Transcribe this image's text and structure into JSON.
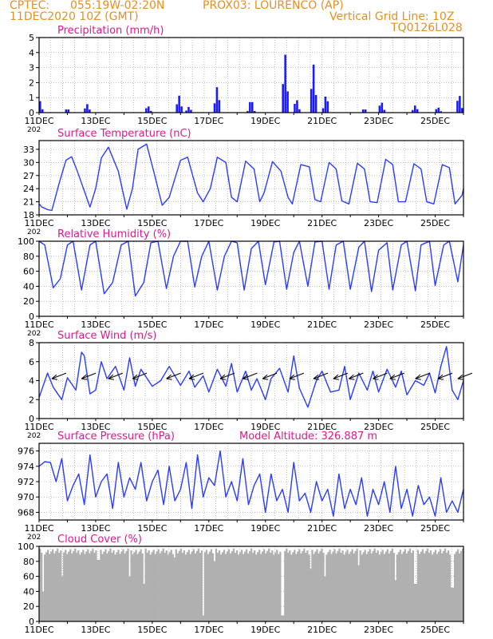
{
  "header": {
    "source": "CPTEC:",
    "coords": "055:19W-02:20N",
    "station": "PROX03: LOURENCO (AP)",
    "run": "11DEC2020 10Z (GMT)",
    "vgrid": "Vertical Grid Line: 10Z",
    "code": "TQ0126L028"
  },
  "colors": {
    "header": "#e69020",
    "title": "#e0198c",
    "series": "#2a3cff",
    "bars": "#1a1aff",
    "cloud": "#b0b0b0",
    "arrows": "#000000"
  },
  "x_labels": [
    "11DEC",
    "13DEC",
    "15DEC",
    "17DEC",
    "19DEC",
    "21DEC",
    "23DEC",
    "25DEC"
  ],
  "x_tail": "202",
  "chart_data": [
    {
      "id": "precip",
      "type": "bar",
      "title": "Precipitation (mm/h)",
      "ylim": [
        0,
        5
      ],
      "yticks": [
        0,
        1,
        2,
        3,
        4,
        5
      ],
      "x_range_days": [
        0,
        15
      ],
      "peaks": [
        [
          0.02,
          0.9
        ],
        [
          1.0,
          0.3
        ],
        [
          1.7,
          0.6
        ],
        [
          3.85,
          0.5
        ],
        [
          4.95,
          1.2
        ],
        [
          5.3,
          0.4
        ],
        [
          6.3,
          1.8
        ],
        [
          7.5,
          1.0
        ],
        [
          8.7,
          4.1
        ],
        [
          9.1,
          1.0
        ],
        [
          9.7,
          3.4
        ],
        [
          10.15,
          1.3
        ],
        [
          11.5,
          0.3
        ],
        [
          12.1,
          0.8
        ],
        [
          13.3,
          0.5
        ],
        [
          14.1,
          0.4
        ],
        [
          14.85,
          1.35
        ]
      ]
    },
    {
      "id": "temp",
      "type": "line",
      "title": "Surface Temperature (nC)",
      "ylim": [
        18,
        35
      ],
      "yticks": [
        18,
        21,
        24,
        27,
        30,
        33
      ],
      "x_range_days": [
        0,
        15
      ],
      "x": [
        0,
        0.1,
        0.3,
        0.45,
        0.7,
        0.95,
        1.15,
        1.35,
        1.8,
        2.0,
        2.2,
        2.45,
        2.8,
        3.1,
        3.3,
        3.5,
        3.8,
        4.05,
        4.35,
        4.6,
        5.0,
        5.25,
        5.6,
        5.8,
        6.05,
        6.3,
        6.6,
        6.8,
        7.0,
        7.3,
        7.6,
        7.8,
        7.95,
        8.25,
        8.55,
        8.8,
        8.95,
        9.25,
        9.55,
        9.75,
        9.95,
        10.25,
        10.5,
        10.7,
        10.95,
        11.25,
        11.5,
        11.7,
        11.95,
        12.25,
        12.5,
        12.7,
        12.95,
        13.25,
        13.5,
        13.7,
        13.95,
        14.25,
        14.5,
        14.7,
        14.95,
        15.0
      ],
      "y": [
        20.5,
        19.8,
        19.2,
        19.0,
        25,
        30.5,
        31.3,
        28,
        19.8,
        24,
        31,
        33.5,
        28,
        19.3,
        24,
        33,
        34.2,
        28,
        20.2,
        22,
        30.5,
        31.2,
        23,
        21,
        24,
        31.2,
        30,
        22,
        21,
        30.3,
        28.5,
        21,
        23,
        30.2,
        28,
        22,
        20.5,
        29.5,
        29,
        21.5,
        21,
        30.0,
        28.5,
        21.2,
        20.5,
        29.8,
        28.5,
        21.0,
        20.8,
        30.7,
        29.5,
        21.0,
        21,
        29.7,
        28.5,
        21.0,
        20.5,
        29.5,
        28.8,
        20.5,
        22.5,
        24.0
      ]
    },
    {
      "id": "humidity",
      "type": "line",
      "title": "Relative Humidity (%)",
      "ylim": [
        0,
        100
      ],
      "yticks": [
        0,
        20,
        40,
        60,
        80,
        100
      ],
      "x_range_days": [
        0,
        15
      ],
      "x": [
        0,
        0.2,
        0.5,
        0.75,
        1.0,
        1.2,
        1.5,
        1.8,
        2.0,
        2.3,
        2.6,
        2.9,
        3.15,
        3.4,
        3.7,
        3.95,
        4.2,
        4.5,
        4.75,
        5.0,
        5.25,
        5.5,
        5.75,
        6.0,
        6.3,
        6.55,
        6.8,
        7.0,
        7.25,
        7.5,
        7.75,
        8.0,
        8.3,
        8.5,
        8.75,
        9.0,
        9.2,
        9.5,
        9.75,
        10.0,
        10.25,
        10.5,
        10.75,
        11.0,
        11.3,
        11.5,
        11.75,
        12.0,
        12.3,
        12.5,
        12.8,
        13.0,
        13.3,
        13.5,
        13.8,
        14.0,
        14.3,
        14.5,
        14.8,
        15.0
      ],
      "y": [
        100,
        95,
        38,
        50,
        95,
        100,
        35,
        95,
        100,
        30,
        45,
        95,
        100,
        27,
        45,
        98,
        100,
        37,
        80,
        100,
        100,
        39,
        80,
        100,
        35,
        80,
        100,
        98,
        35,
        90,
        100,
        42,
        99,
        100,
        36,
        85,
        100,
        40,
        99,
        100,
        36,
        95,
        100,
        36,
        92,
        100,
        33,
        88,
        98,
        35,
        95,
        100,
        34,
        95,
        100,
        41,
        95,
        100,
        46,
        95
      ]
    },
    {
      "id": "wind",
      "type": "line",
      "title": "Surface Wind (m/s)",
      "ylim": [
        0,
        8
      ],
      "yticks": [
        0,
        2,
        4,
        6,
        8
      ],
      "x_range_days": [
        0,
        15
      ],
      "x": [
        0,
        0.3,
        0.5,
        0.8,
        1.0,
        1.3,
        1.5,
        1.6,
        1.8,
        2.0,
        2.2,
        2.4,
        2.7,
        3.0,
        3.2,
        3.4,
        3.6,
        4.0,
        4.3,
        4.6,
        5.0,
        5.3,
        5.5,
        5.8,
        6.0,
        6.3,
        6.6,
        6.8,
        7.0,
        7.3,
        7.5,
        7.7,
        8.0,
        8.2,
        8.5,
        8.8,
        9.0,
        9.2,
        9.5,
        9.8,
        10.0,
        10.3,
        10.6,
        10.8,
        11.0,
        11.3,
        11.6,
        11.8,
        12.0,
        12.3,
        12.6,
        12.8,
        13.0,
        13.3,
        13.6,
        13.8,
        14.0,
        14.2,
        14.4,
        14.6,
        14.8,
        15.0
      ],
      "y": [
        2.2,
        4.8,
        3.3,
        2.0,
        4.3,
        3.0,
        7.0,
        6.6,
        2.6,
        3.0,
        6.0,
        4.2,
        5.5,
        3.0,
        6.4,
        3.4,
        5.2,
        3.4,
        4.0,
        5.5,
        3.5,
        5.0,
        3.3,
        4.5,
        2.8,
        5.2,
        3.4,
        5.8,
        2.8,
        5.0,
        3.0,
        4.2,
        2.0,
        4.2,
        5.3,
        2.8,
        6.6,
        3.2,
        1.2,
        4.0,
        5.0,
        2.8,
        3.0,
        5.5,
        2.0,
        4.8,
        3.0,
        5.0,
        2.8,
        5.2,
        3.3,
        5.0,
        2.5,
        4.0,
        3.5,
        4.8,
        2.7,
        5.5,
        7.6,
        3.0,
        2.0,
        4.0
      ],
      "barbs_day": [
        0.45,
        1.5,
        2.45,
        3.3,
        4.5,
        5.3,
        6.4,
        7.2,
        7.9,
        8.85,
        9.7,
        10.4,
        10.95,
        11.8,
        12.4,
        13.3,
        14.1,
        14.8
      ]
    },
    {
      "id": "pressure",
      "type": "line",
      "title": "Surface Pressure (hPa)",
      "subtitle": "Model Altitude: 326.887  m",
      "ylim": [
        967,
        977
      ],
      "yticks": [
        968,
        970,
        972,
        974,
        976
      ],
      "x_range_days": [
        0,
        15
      ],
      "x": [
        0,
        0.2,
        0.4,
        0.6,
        0.8,
        1.0,
        1.2,
        1.4,
        1.6,
        1.8,
        2.0,
        2.2,
        2.4,
        2.6,
        2.8,
        3.0,
        3.2,
        3.4,
        3.6,
        3.8,
        4.0,
        4.2,
        4.4,
        4.6,
        4.8,
        5.0,
        5.2,
        5.4,
        5.6,
        5.8,
        6.0,
        6.2,
        6.4,
        6.6,
        6.8,
        7.0,
        7.2,
        7.4,
        7.6,
        7.8,
        8.0,
        8.2,
        8.4,
        8.6,
        8.8,
        9.0,
        9.2,
        9.4,
        9.6,
        9.8,
        10.0,
        10.2,
        10.4,
        10.6,
        10.8,
        11.0,
        11.2,
        11.4,
        11.6,
        11.8,
        12.0,
        12.2,
        12.4,
        12.6,
        12.8,
        13.0,
        13.2,
        13.4,
        13.6,
        13.8,
        14.0,
        14.2,
        14.4,
        14.6,
        14.8,
        15.0
      ],
      "y": [
        974,
        974.6,
        974.5,
        972,
        975,
        969.5,
        971.5,
        973,
        969,
        975.5,
        970,
        972,
        973,
        968.5,
        974.5,
        970,
        972.5,
        971,
        974.5,
        969.5,
        972,
        973.5,
        969,
        974,
        969.5,
        971,
        974.5,
        968.5,
        975.5,
        970,
        972.5,
        971.5,
        976,
        970,
        972,
        969.5,
        975,
        969,
        971.5,
        973,
        968,
        973,
        969.5,
        971,
        968,
        974.5,
        969.5,
        970.5,
        968,
        972,
        969.5,
        971,
        967.5,
        973,
        968.5,
        971,
        969,
        972.5,
        967.5,
        971,
        969,
        972,
        968,
        974,
        968.5,
        971,
        967.5,
        971.5,
        969,
        970,
        967.5,
        972.5,
        968,
        969.5,
        968,
        971
      ]
    },
    {
      "id": "cloud",
      "type": "bar",
      "title": "Cloud Cover (%)",
      "ylim": [
        0,
        100
      ],
      "yticks": [
        0,
        20,
        40,
        60,
        80,
        100
      ],
      "x_range_days": [
        0,
        15
      ],
      "typical_value": 97,
      "dips": [
        [
          0.15,
          40
        ],
        [
          0.8,
          60
        ],
        [
          2.1,
          82
        ],
        [
          3.2,
          60
        ],
        [
          3.7,
          50
        ],
        [
          4.8,
          85
        ],
        [
          5.8,
          8
        ],
        [
          6.2,
          80
        ],
        [
          8.6,
          8
        ],
        [
          9.6,
          70
        ],
        [
          10.1,
          60
        ],
        [
          11.3,
          75
        ],
        [
          12.6,
          55
        ],
        [
          13.3,
          50
        ],
        [
          14.6,
          45
        ]
      ]
    }
  ]
}
